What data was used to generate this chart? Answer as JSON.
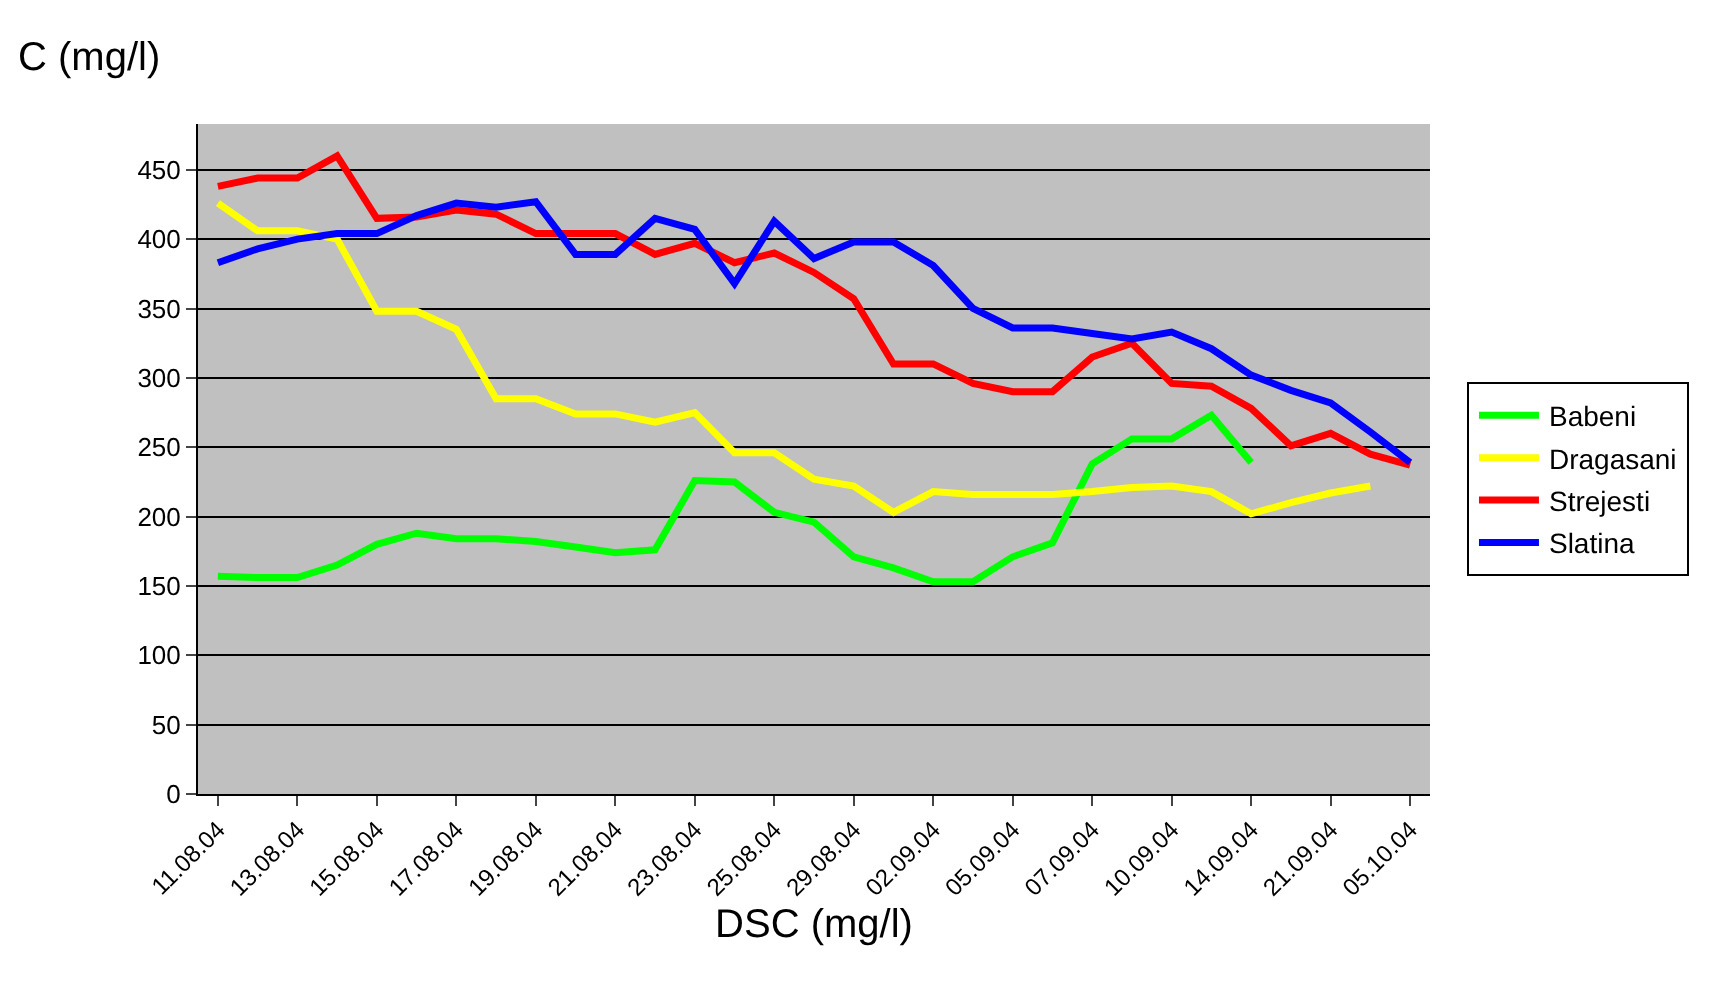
{
  "chart_data": {
    "type": "line",
    "xlabel": "DSC (mg/l)",
    "ylabel": "C (mg/l)",
    "categories": [
      "11.08.04",
      null,
      "13.08.04",
      null,
      "15.08.04",
      null,
      "17.08.04",
      null,
      "19.08.04",
      null,
      "21.08.04",
      null,
      "23.08.04",
      null,
      "25.08.04",
      null,
      "29.08.04",
      null,
      "02.09.04",
      null,
      "05.09.04",
      null,
      "07.09.04",
      null,
      "10.09.04",
      null,
      "14.09.04",
      null,
      "21.09.04",
      null,
      "05.10.04"
    ],
    "series": [
      {
        "name": "Babeni",
        "color": "#00ff00",
        "values": [
          157,
          156,
          156,
          165,
          180,
          188,
          184,
          184,
          182,
          178,
          174,
          176,
          226,
          225,
          203,
          196,
          171,
          163,
          153,
          153,
          171,
          181,
          238,
          256,
          256,
          273,
          239,
          null,
          null,
          null,
          null
        ]
      },
      {
        "name": "Dragasani",
        "color": "#ffff00",
        "values": [
          426,
          406,
          406,
          400,
          348,
          348,
          335,
          285,
          285,
          274,
          274,
          268,
          275,
          246,
          246,
          227,
          222,
          203,
          218,
          216,
          216,
          216,
          218,
          221,
          222,
          218,
          202,
          210,
          217,
          222,
          null
        ]
      },
      {
        "name": "Strejesti",
        "color": "#ff0000",
        "values": [
          438,
          444,
          444,
          460,
          415,
          416,
          421,
          418,
          404,
          404,
          404,
          389,
          397,
          383,
          390,
          376,
          357,
          310,
          310,
          296,
          290,
          290,
          315,
          325,
          296,
          294,
          278,
          251,
          260,
          245,
          237
        ]
      },
      {
        "name": "Slatina",
        "color": "#0000ff",
        "values": [
          383,
          393,
          400,
          404,
          404,
          417,
          426,
          423,
          427,
          389,
          389,
          415,
          407,
          368,
          413,
          386,
          398,
          398,
          381,
          350,
          336,
          336,
          332,
          328,
          333,
          321,
          302,
          291,
          282,
          261,
          239
        ]
      }
    ],
    "ylim": [
      0,
      483
    ],
    "yticks": [
      0,
      50,
      100,
      150,
      200,
      250,
      300,
      350,
      400,
      450
    ],
    "grid": "y",
    "legend": "right",
    "marker": "none",
    "line_style": "solid"
  }
}
